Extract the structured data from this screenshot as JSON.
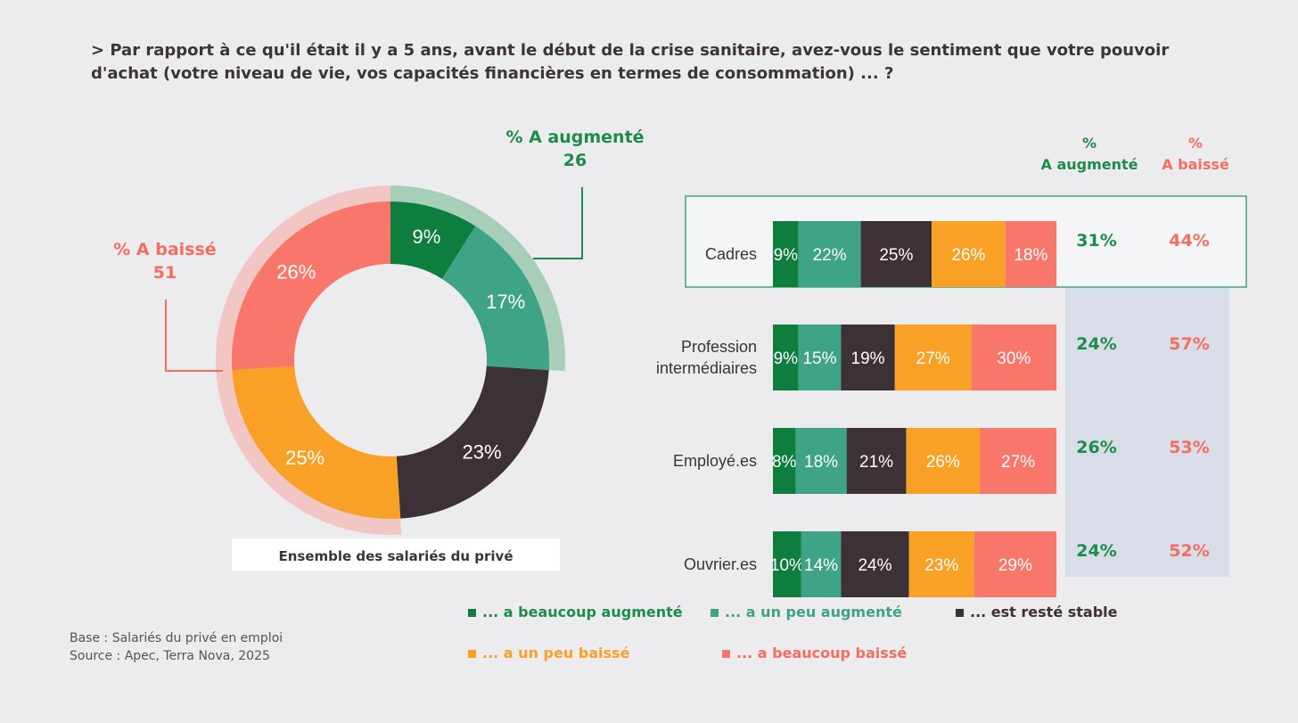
{
  "question": {
    "line1": "> Par rapport à ce qu'il était il y a 5 ans, avant le début de la crise sanitaire, avez-vous le sentiment que votre pouvoir",
    "line2": "d'achat (votre niveau de vie, vos capacités financières en termes de consommation) ... ?"
  },
  "footnote": {
    "base": "Base : Salariés du privé en emploi",
    "source": "Source : Apec, Terra Nova, 2025"
  },
  "colors": {
    "beaucoup_augmente": "#0d7e3e",
    "un_peu_augmente": "#3ea387",
    "stable": "#3c3134",
    "un_peu_baisse": "#f8a126",
    "beaucoup_baisse": "#f9766a",
    "green_text": "#1d8c4a",
    "red_text": "#f36e5f"
  },
  "chart_data": [
    {
      "type": "pie",
      "variant": "donut",
      "title": "Ensemble des salariés du privé",
      "slices": [
        {
          "label": "9%",
          "value": 9,
          "category": "... a beaucoup augmenté"
        },
        {
          "label": "17%",
          "value": 17,
          "category": "... a un peu augmenté"
        },
        {
          "label": "23%",
          "value": 23,
          "category": "... est resté stable"
        },
        {
          "label": "25%",
          "value": 25,
          "category": "... a un peu baissé"
        },
        {
          "label": "26%",
          "value": 26,
          "category": "... a beaucoup baissé"
        }
      ],
      "annotations": [
        {
          "title": "% A augmenté",
          "value": "26"
        },
        {
          "title": "% A baissé",
          "value": "51"
        }
      ]
    },
    {
      "type": "bar",
      "orientation": "horizontal",
      "stacked": true,
      "categories": [
        "Cadres",
        "Profession intermédiaires",
        "Employé.es",
        "Ouvrier.es"
      ],
      "category_lines": [
        [
          "Cadres"
        ],
        [
          "Profession",
          "intermédiaires"
        ],
        [
          "Employé.es"
        ],
        [
          "Ouvrier.es"
        ]
      ],
      "series": [
        {
          "name": "... a beaucoup augmenté",
          "values": [
            9,
            9,
            8,
            10
          ]
        },
        {
          "name": "... a un peu augmenté",
          "values": [
            22,
            15,
            18,
            14
          ]
        },
        {
          "name": "... est resté stable",
          "values": [
            25,
            19,
            21,
            24
          ]
        },
        {
          "name": "... a un peu baissé",
          "values": [
            26,
            27,
            26,
            23
          ]
        },
        {
          "name": "... a beaucoup baissé",
          "values": [
            18,
            30,
            27,
            29
          ]
        }
      ],
      "summary_headers": {
        "augmente": [
          "%",
          "A augmenté"
        ],
        "baisse": [
          "%",
          "A baissé"
        ]
      },
      "summary_augmente": [
        "31%",
        "24%",
        "26%",
        "24%"
      ],
      "summary_baisse": [
        "44%",
        "57%",
        "53%",
        "52%"
      ],
      "legend": {
        "position": "bottom",
        "items": [
          "... a beaucoup augmenté",
          "... a un peu augmenté",
          "... est resté stable",
          "... a un peu baissé",
          "... a beaucoup baissé"
        ]
      }
    }
  ]
}
